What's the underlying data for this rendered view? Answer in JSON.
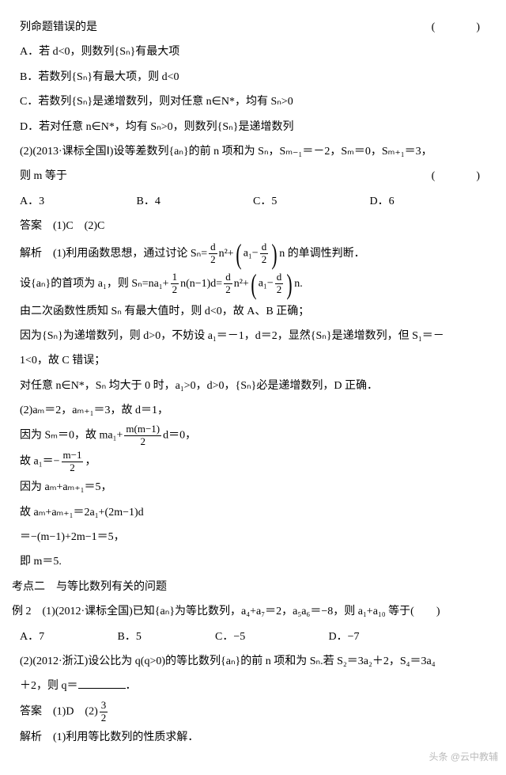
{
  "q1": {
    "stem": "列命题错误的是",
    "paren": "(　　)",
    "optA": "A．若 d<0，则数列{Sₙ}有最大项",
    "optB": "B．若数列{Sₙ}有最大项，则 d<0",
    "optC": "C．若数列{Sₙ}是递增数列，则对任意 n∈N*，均有 Sₙ>0",
    "optD": "D．若对任意 n∈N*，均有 Sₙ>0，则数列{Sₙ}是递增数列"
  },
  "q2": {
    "stem": "(2)(2013·课标全国Ⅰ)设等差数列{aₙ}的前 n 项和为 Sₙ，Sₘ₋₁＝－2，Sₘ＝0，Sₘ₊₁＝3，",
    "stem2": "则 m 等于",
    "paren": "(　　)",
    "a": "A．3",
    "b": "B．4",
    "c": "C．5",
    "d": "D．6"
  },
  "ans": {
    "label": "答案　(1)C　(2)C"
  },
  "exp": {
    "l0a": "解析　(1)利用函数思想，通过讨论 Sₙ=",
    "frac_d2_n": "d",
    "frac_d2_d": "2",
    "l0b": "n²+",
    "frac_a1d_n": "a₁−",
    "frac_a1d_d": "2",
    "l0c": "n 的单调性判断．",
    "l1a": "设{aₙ}的首项为 a₁，则 Sₙ=na₁+",
    "frac_12_n": "1",
    "frac_12_d": "2",
    "l1b": "n(n−1)d=",
    "l1c": "n²+",
    "l1d": "n.",
    "l2": "由二次函数性质知 Sₙ 有最大值时，则 d<0，故 A、B 正确；",
    "l3": "因为{Sₙ}为递增数列，则 d>0，不妨设 a₁＝－1，d＝2，显然{Sₙ}是递增数列，但 S₁＝－",
    "l4": "1<0，故 C 错误；",
    "l5": "对任意 n∈N*，Sₙ 均大于 0 时，a₁>0，d>0，{Sₙ}必是递增数列，D 正确．",
    "l6": "(2)aₘ＝2，aₘ₊₁＝3，故 d＝1，",
    "l7a": "因为 Sₘ＝0，故 ma₁+",
    "frac_mm_n": "m(m−1)",
    "frac_mm_d": "2",
    "l7b": "d＝0，",
    "l8a": "故 a₁＝−",
    "frac_m1_n": "m−1",
    "frac_m1_d": "2",
    "l8b": "，",
    "l9": "因为 aₘ+aₘ₊₁＝5，",
    "l10": "故 aₘ+aₘ₊₁＝2a₁+(2m−1)d",
    "l11": "＝−(m−1)+2m−1＝5，",
    "l12": "即 m＝5."
  },
  "kd2": {
    "title": "考点二　与等比数列有关的问题"
  },
  "ex2": {
    "stem": "例 2　(1)(2012·课标全国)已知{aₙ}为等比数列，a₄+a₇＝2，a₅a₆＝−8，则 a₁+a₁₀ 等于(　　)",
    "a": "A．7",
    "b": "B．5",
    "c": "C．−5",
    "d": "D．−7",
    "p2a": "(2)(2012·浙江)设公比为 q(q>0)的等比数列{aₙ}的前 n 项和为 Sₙ.若 S₂＝3a₂＋2，S₄＝3a₄",
    "p2b": "＋2，则 q＝",
    "p2c": "．",
    "ansa": "答案　(1)D　(2)",
    "frac_32_n": "3",
    "frac_32_d": "2",
    "exp": "解析　(1)利用等比数列的性质求解．"
  },
  "watermark": "头条 @云中教辅"
}
